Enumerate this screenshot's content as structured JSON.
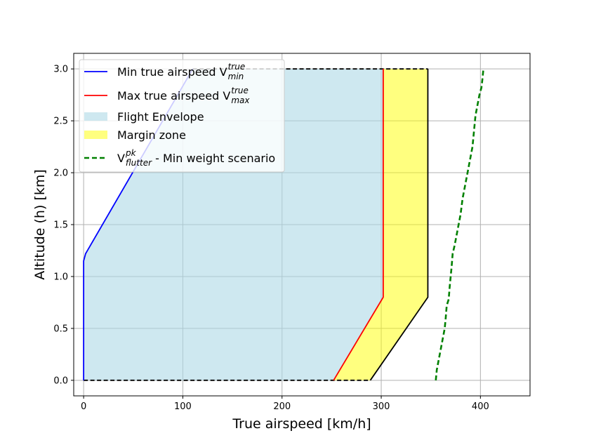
{
  "chart_data": {
    "type": "area",
    "title": "",
    "xlabel": "True airspeed [km/h]",
    "ylabel": "Altitude (h) [km]",
    "xlim": [
      -10,
      450
    ],
    "ylim": [
      -0.15,
      3.15
    ],
    "xticks": [
      0,
      100,
      200,
      300,
      400
    ],
    "yticks": [
      0.0,
      0.5,
      1.0,
      1.5,
      2.0,
      2.5,
      3.0
    ],
    "xtick_labels": [
      "0",
      "100",
      "200",
      "300",
      "400"
    ],
    "ytick_labels": [
      "0.0",
      "0.5",
      "1.0",
      "1.5",
      "2.0",
      "2.5",
      "3.0"
    ],
    "grid": true,
    "legend_position": "top-left",
    "series": [
      {
        "key": "vmin",
        "kind": "line",
        "color": "#0000ff",
        "legend": {
          "main": "Min true airspeed V",
          "sub": "min",
          "sup": "true"
        },
        "x": [
          0,
          0,
          2,
          110
        ],
        "y": [
          0.0,
          1.15,
          1.22,
          3.0
        ]
      },
      {
        "key": "vmax",
        "kind": "line",
        "color": "#ff0000",
        "legend": {
          "main": "Max true airspeed V",
          "sub": "max",
          "sup": "true"
        },
        "x": [
          252,
          302,
          302
        ],
        "y": [
          0.0,
          0.8,
          3.0
        ]
      },
      {
        "key": "envelope",
        "kind": "area",
        "color": "#add8e6",
        "opacity": 0.6,
        "legend": {
          "main": "Flight Envelope"
        },
        "x": [
          0,
          0,
          2,
          110,
          302,
          302,
          252
        ],
        "y": [
          0.0,
          1.15,
          1.22,
          3.0,
          3.0,
          0.8,
          0.0
        ]
      },
      {
        "key": "margin",
        "kind": "area",
        "color": "#ffff00",
        "opacity": 0.5,
        "legend": {
          "main": "Margin zone"
        },
        "x": [
          252,
          302,
          302,
          347,
          347,
          289
        ],
        "y": [
          0.0,
          0.8,
          3.0,
          3.0,
          0.8,
          0.0
        ]
      },
      {
        "key": "margin_edge",
        "kind": "line",
        "color": "#000000",
        "x": [
          289,
          347,
          347
        ],
        "y": [
          0.0,
          0.8,
          3.0
        ]
      },
      {
        "key": "bottom_bound",
        "kind": "dashed",
        "color": "#000000",
        "x": [
          0,
          289
        ],
        "y": [
          0.0,
          0.0
        ]
      },
      {
        "key": "top_bound",
        "kind": "dashed",
        "color": "#000000",
        "x": [
          110,
          347
        ],
        "y": [
          3.0,
          3.0
        ]
      },
      {
        "key": "flutter",
        "kind": "dashed",
        "color": "#008000",
        "legend": {
          "main": "V",
          "sub": "flutter",
          "sup": "pk",
          "after": " - Min weight scenario"
        },
        "x": [
          355,
          356,
          358,
          360,
          362,
          364,
          365,
          366,
          368,
          369,
          370,
          371,
          372,
          374,
          376,
          378,
          380,
          382,
          384,
          386,
          388,
          390,
          392,
          393,
          394,
          395,
          397,
          399,
          401,
          402,
          403
        ],
        "y": [
          0.0,
          0.1,
          0.2,
          0.3,
          0.4,
          0.5,
          0.6,
          0.72,
          0.78,
          0.9,
          1.0,
          1.1,
          1.22,
          1.3,
          1.4,
          1.5,
          1.6,
          1.75,
          1.85,
          1.95,
          2.05,
          2.15,
          2.25,
          2.35,
          2.45,
          2.55,
          2.65,
          2.75,
          2.82,
          2.9,
          3.0
        ]
      }
    ]
  }
}
